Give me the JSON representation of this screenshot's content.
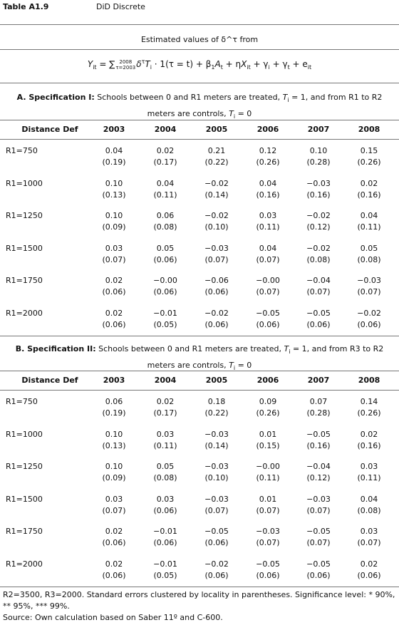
{
  "header": {
    "label": "Table A1.9",
    "title": "DiD Discrete"
  },
  "estimated": "Estimated values of δ^τ from",
  "formula": [
    {
      "text": "Y",
      "style": "italic"
    },
    {
      "text": "it",
      "pos": "sub"
    },
    {
      "text": " = ∑"
    },
    {
      "upper": "2008",
      "lower": "τ=2003"
    },
    {
      "text": "δ",
      "style": "italic"
    },
    {
      "text": "τ",
      "pos": "sup"
    },
    {
      "text": "T",
      "style": "italic"
    },
    {
      "text": "i",
      "pos": "sub"
    },
    {
      "text": " · 1(τ = t) + β"
    },
    {
      "text": "1",
      "pos": "sub"
    },
    {
      "text": "A",
      "style": "italic"
    },
    {
      "text": "t",
      "pos": "sub"
    },
    {
      "text": " + η"
    },
    {
      "text": "X",
      "style": "italic"
    },
    {
      "text": "it",
      "pos": "sub"
    },
    {
      "text": " + γ"
    },
    {
      "text": "i",
      "pos": "sub"
    },
    {
      "text": " + γ"
    },
    {
      "text": "t",
      "pos": "sub"
    },
    {
      "text": " + e"
    },
    {
      "text": "it",
      "pos": "sub"
    }
  ],
  "panels": [
    {
      "heading": [
        {
          "text": "A. Specification I:",
          "style": "bold"
        },
        {
          "text": " Schools between 0 and R1 meters are treated, "
        },
        {
          "text": "T",
          "style": "italic"
        },
        {
          "text": "i",
          "pos": "sub"
        },
        {
          "text": " = 1, and from R1 to R2 meters are controls, "
        },
        {
          "text": "T",
          "style": "italic"
        },
        {
          "text": "i",
          "pos": "sub"
        },
        {
          "text": " = 0"
        }
      ],
      "columns": [
        "Distance Def",
        "2003",
        "2004",
        "2005",
        "2006",
        "2007",
        "2008"
      ],
      "rows": [
        {
          "label": "R1=750",
          "values": [
            "0.04",
            "0.02",
            "0.21",
            "0.12",
            "0.10",
            "0.15"
          ],
          "errors": [
            "(0.19)",
            "(0.17)",
            "(0.22)",
            "(0.26)",
            "(0.28)",
            "(0.26)"
          ]
        },
        {
          "label": "R1=1000",
          "values": [
            "0.10",
            "0.04",
            "−0.02",
            "0.04",
            "−0.03",
            "0.02"
          ],
          "errors": [
            "(0.13)",
            "(0.11)",
            "(0.14)",
            "(0.16)",
            "(0.16)",
            "(0.16)"
          ]
        },
        {
          "label": "R1=1250",
          "values": [
            "0.10",
            "0.06",
            "−0.02",
            "0.03",
            "−0.02",
            "0.04"
          ],
          "errors": [
            "(0.09)",
            "(0.08)",
            "(0.10)",
            "(0.11)",
            "(0.12)",
            "(0.11)"
          ]
        },
        {
          "label": "R1=1500",
          "values": [
            "0.03",
            "0.05",
            "−0.03",
            "0.04",
            "−0.02",
            "0.05"
          ],
          "errors": [
            "(0.07)",
            "(0.06)",
            "(0.07)",
            "(0.07)",
            "(0.08)",
            "(0.08)"
          ]
        },
        {
          "label": "R1=1750",
          "values": [
            "0.02",
            "−0.00",
            "−0.06",
            "−0.00",
            "−0.04",
            "−0.03"
          ],
          "errors": [
            "(0.06)",
            "(0.06)",
            "(0.06)",
            "(0.07)",
            "(0.07)",
            "(0.07)"
          ]
        },
        {
          "label": "R1=2000",
          "values": [
            "0.02",
            "−0.01",
            "−0.02",
            "−0.05",
            "−0.05",
            "−0.02"
          ],
          "errors": [
            "(0.06)",
            "(0.05)",
            "(0.06)",
            "(0.06)",
            "(0.06)",
            "(0.06)"
          ]
        }
      ]
    },
    {
      "heading": [
        {
          "text": "B. Specification II:",
          "style": "bold"
        },
        {
          "text": " Schools between 0 and R1 meters are treated, "
        },
        {
          "text": "T",
          "style": "italic"
        },
        {
          "text": "i",
          "pos": "sub"
        },
        {
          "text": " = 1, and from R3 to R2 meters are controls, "
        },
        {
          "text": "T",
          "style": "italic"
        },
        {
          "text": "i",
          "pos": "sub"
        },
        {
          "text": " = 0"
        }
      ],
      "columns": [
        "Distance Def",
        "2003",
        "2004",
        "2005",
        "2006",
        "2007",
        "2008"
      ],
      "rows": [
        {
          "label": "R1=750",
          "values": [
            "0.06",
            "0.02",
            "0.18",
            "0.09",
            "0.07",
            "0.14"
          ],
          "errors": [
            "(0.19)",
            "(0.17)",
            "(0.22)",
            "(0.26)",
            "(0.28)",
            "(0.26)"
          ]
        },
        {
          "label": "R1=1000",
          "values": [
            "0.10",
            "0.03",
            "−0.03",
            "0.01",
            "−0.05",
            "0.02"
          ],
          "errors": [
            "(0.13)",
            "(0.11)",
            "(0.14)",
            "(0.15)",
            "(0.16)",
            "(0.16)"
          ]
        },
        {
          "label": "R1=1250",
          "values": [
            "0.10",
            "0.05",
            "−0.03",
            "−0.00",
            "−0.04",
            "0.03"
          ],
          "errors": [
            "(0.09)",
            "(0.08)",
            "(0.10)",
            "(0.11)",
            "(0.12)",
            "(0.11)"
          ]
        },
        {
          "label": "R1=1500",
          "values": [
            "0.03",
            "0.03",
            "−0.03",
            "0.01",
            "−0.03",
            "0.04"
          ],
          "errors": [
            "(0.07)",
            "(0.06)",
            "(0.07)",
            "(0.07)",
            "(0.07)",
            "(0.08)"
          ]
        },
        {
          "label": "R1=1750",
          "values": [
            "0.02",
            "−0.01",
            "−0.05",
            "−0.03",
            "−0.05",
            "0.03"
          ],
          "errors": [
            "(0.06)",
            "(0.06)",
            "(0.06)",
            "(0.07)",
            "(0.07)",
            "(0.07)"
          ]
        },
        {
          "label": "R1=2000",
          "values": [
            "0.02",
            "−0.01",
            "−0.02",
            "−0.05",
            "−0.05",
            "0.02"
          ],
          "errors": [
            "(0.06)",
            "(0.05)",
            "(0.06)",
            "(0.06)",
            "(0.06)",
            "(0.06)"
          ]
        }
      ]
    }
  ],
  "notes": [
    "R2=3500, R3=2000. Standard errors clustered by locality in parentheses. Significance level: * 90%, ** 95%, *** 99%.",
    "Source: Own calculation based on Saber 11º and C-600."
  ]
}
